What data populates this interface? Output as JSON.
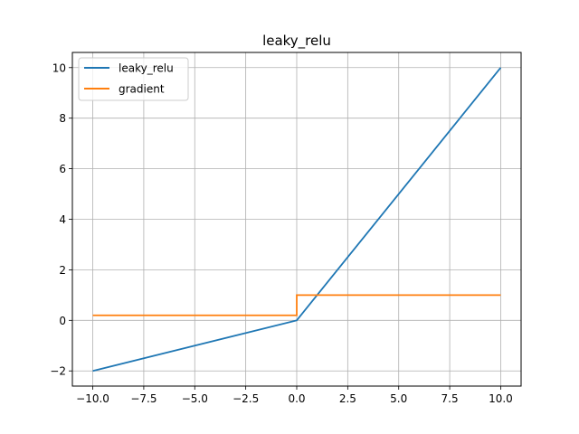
{
  "chart_data": {
    "type": "line",
    "title": "leaky_relu",
    "xlabel": "",
    "ylabel": "",
    "xlim": [
      -11,
      11
    ],
    "ylim": [
      -2.6,
      10.6
    ],
    "xticks": [
      -10.0,
      -7.5,
      -5.0,
      -2.5,
      0.0,
      2.5,
      5.0,
      7.5,
      10.0
    ],
    "xtick_labels": [
      "−10.0",
      "−7.5",
      "−5.0",
      "−2.5",
      "0.0",
      "2.5",
      "5.0",
      "7.5",
      "10.0"
    ],
    "yticks": [
      -2,
      0,
      2,
      4,
      6,
      8,
      10
    ],
    "ytick_labels": [
      "−2",
      "0",
      "2",
      "4",
      "6",
      "8",
      "10"
    ],
    "grid": true,
    "legend_position": "top-left",
    "series": [
      {
        "name": "leaky_relu",
        "color": "#1f77b4",
        "x": [
          -10,
          0,
          10
        ],
        "y": [
          -2,
          0,
          10
        ]
      },
      {
        "name": "gradient",
        "color": "#ff7f0e",
        "x": [
          -10,
          0,
          0,
          10
        ],
        "y": [
          0.2,
          0.2,
          1,
          1
        ]
      }
    ]
  }
}
